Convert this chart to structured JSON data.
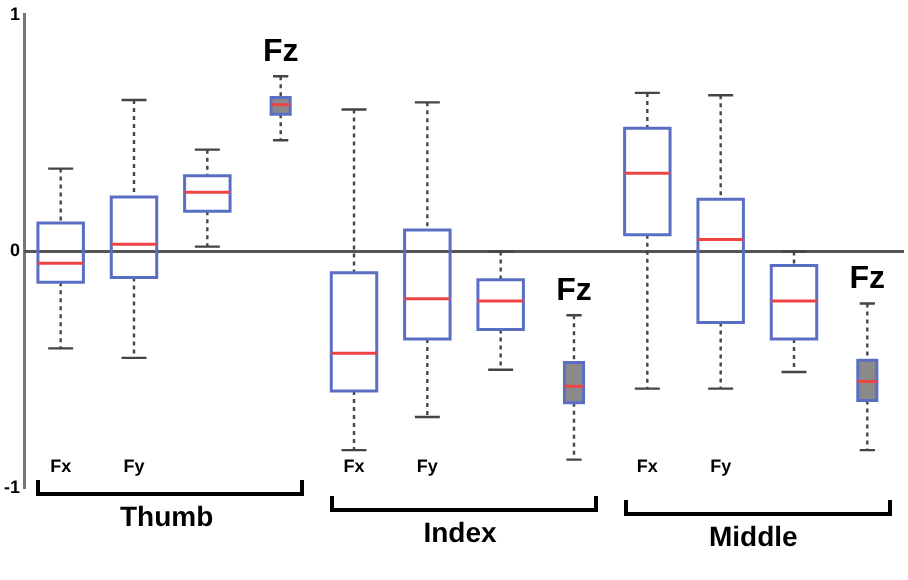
{
  "chart_data": {
    "type": "box",
    "categories": [
      "Fx",
      "Fy",
      null,
      "Fz",
      "Fx",
      "Fy",
      null,
      "Fz",
      "Fx",
      "Fy",
      null,
      "Fz"
    ],
    "series": [
      {
        "color": "#5a6fc4",
        "boxes": [
          {
            "low": -0.41,
            "q1": -0.13,
            "median": -0.05,
            "q3": 0.12,
            "high": 0.35
          },
          {
            "low": -0.45,
            "q1": -0.11,
            "median": 0.03,
            "q3": 0.23,
            "high": 0.64
          },
          {
            "low": 0.02,
            "q1": 0.17,
            "median": 0.25,
            "q3": 0.32,
            "high": 0.43
          },
          null,
          {
            "low": -0.84,
            "q1": -0.59,
            "median": -0.43,
            "q3": -0.09,
            "high": 0.6
          },
          {
            "low": -0.7,
            "q1": -0.37,
            "median": -0.2,
            "q3": 0.09,
            "high": 0.63
          },
          {
            "low": -0.5,
            "q1": -0.33,
            "median": -0.21,
            "q3": -0.12,
            "high": 0.0
          },
          null,
          {
            "low": -0.58,
            "q1": 0.07,
            "median": 0.33,
            "q3": 0.52,
            "high": 0.67
          },
          {
            "low": -0.58,
            "q1": -0.3,
            "median": 0.05,
            "q3": 0.22,
            "high": 0.66
          },
          {
            "low": -0.51,
            "q1": -0.37,
            "median": -0.21,
            "q3": -0.06,
            "high": 0.0
          },
          null
        ]
      },
      {
        "color": "#8a8a8a",
        "boxes": [
          null,
          null,
          null,
          {
            "low": 0.47,
            "q1": 0.58,
            "median": 0.62,
            "q3": 0.65,
            "high": 0.74
          },
          null,
          null,
          null,
          {
            "low": -0.88,
            "q1": -0.64,
            "median": -0.57,
            "q3": -0.47,
            "high": -0.27
          },
          null,
          null,
          null,
          {
            "low": -0.84,
            "q1": -0.63,
            "median": -0.55,
            "q3": -0.46,
            "high": -0.22
          }
        ]
      }
    ],
    "ylim": [
      -1,
      1
    ],
    "yticks": [
      -1,
      0,
      1
    ],
    "grid": false,
    "ref_lines": [
      {
        "axis": "y",
        "value": 0,
        "color": "#555555"
      }
    ],
    "annotations": [
      "Thumb",
      "Index",
      "Middle"
    ]
  }
}
